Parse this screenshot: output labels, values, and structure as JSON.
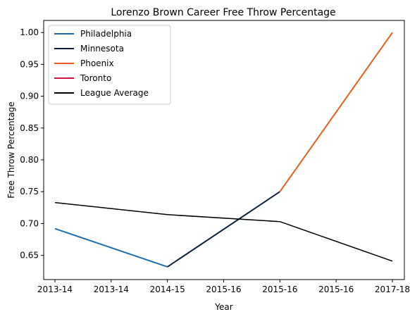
{
  "chart_data": {
    "type": "line",
    "title": "Lorenzo Brown Career Free Throw Percentage",
    "xlabel": "Year",
    "ylabel": "Free Throw Percentage",
    "x": [
      "2013-14",
      "2013-14",
      "2014-15",
      "2015-16",
      "2015-16",
      "2015-16",
      "2017-18"
    ],
    "yticks": [
      "0.65",
      "0.70",
      "0.75",
      "0.80",
      "0.85",
      "0.90",
      "0.95",
      "1.00"
    ],
    "ylim": [
      0.612,
      1.019
    ],
    "grid": false,
    "legend_position": "top-left",
    "series": [
      {
        "name": "Philadelphia",
        "color": "#1f6fb0",
        "points": [
          [
            0,
            0.692
          ],
          [
            2,
            0.632
          ]
        ]
      },
      {
        "name": "Minnesota",
        "color": "#0e2240",
        "points": [
          [
            2,
            0.632
          ],
          [
            4,
            0.75
          ]
        ]
      },
      {
        "name": "Phoenix",
        "color": "#e56020",
        "points": [
          [
            4,
            0.75
          ],
          [
            6,
            1.0
          ]
        ]
      },
      {
        "name": "Toronto",
        "color": "#ce1141",
        "points": []
      },
      {
        "name": "League Average",
        "color": "#000000",
        "points": [
          [
            0,
            0.733
          ],
          [
            2,
            0.714
          ],
          [
            4,
            0.703
          ],
          [
            6,
            0.641
          ]
        ]
      }
    ]
  }
}
